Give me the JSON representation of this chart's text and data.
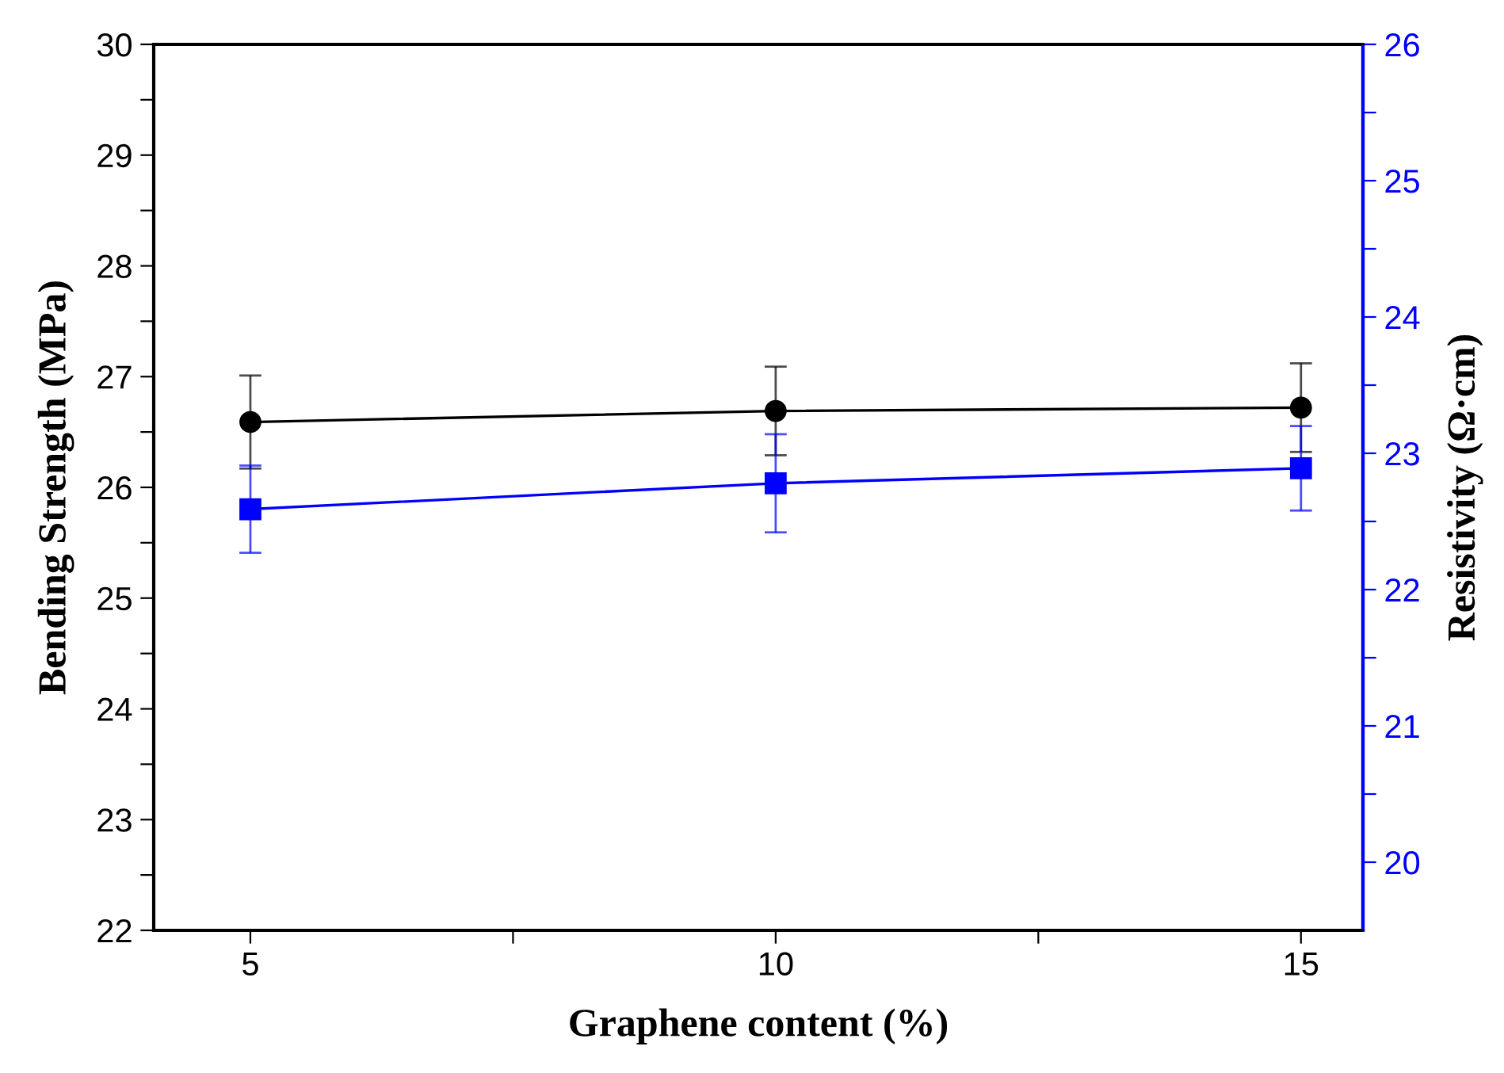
{
  "chart_data": {
    "type": "line",
    "xlabel": "Graphene content (%)",
    "ylabel": "Bending Strength (MPa)",
    "y2label": "Resistivity (Ω·cm)",
    "x": [
      5,
      10,
      15
    ],
    "series": [
      {
        "color": "#000000",
        "marker": "circle",
        "values": [
          26.59,
          26.69,
          26.72
        ],
        "errors": [
          0.42,
          0.4,
          0.4
        ]
      },
      {
        "color": "#0000ff",
        "marker": "square",
        "axis": "y2",
        "values": [
          22.59,
          22.78,
          22.89
        ],
        "errors": [
          0.32,
          0.36,
          0.31
        ]
      }
    ],
    "xlim": [
      4.08,
      15.59
    ],
    "xticks": [
      5,
      {
        "value": 7.5,
        "label": null
      },
      10,
      {
        "value": 12.5,
        "label": null
      },
      15
    ],
    "ylim": [
      22,
      30
    ],
    "yticks": [
      22,
      {
        "value": 22.5,
        "label": null
      },
      23,
      {
        "value": 23.5,
        "label": null
      },
      24,
      {
        "value": 24.5,
        "label": null
      },
      25,
      {
        "value": 25.5,
        "label": null
      },
      26,
      {
        "value": 26.5,
        "label": null
      },
      27,
      {
        "value": 27.5,
        "label": null
      },
      28,
      {
        "value": 28.5,
        "label": null
      },
      29,
      {
        "value": 29.5,
        "label": null
      },
      30
    ],
    "y2lim": [
      19.5,
      26
    ],
    "y2ticks": [
      20,
      {
        "value": 20.5,
        "label": null
      },
      21,
      {
        "value": 21.5,
        "label": null
      },
      22,
      {
        "value": 22.5,
        "label": null
      },
      23,
      {
        "value": 23.5,
        "label": null
      },
      24,
      {
        "value": 24.5,
        "label": null
      },
      25,
      {
        "value": 25.5,
        "label": null
      },
      26
    ],
    "grid": false
  }
}
